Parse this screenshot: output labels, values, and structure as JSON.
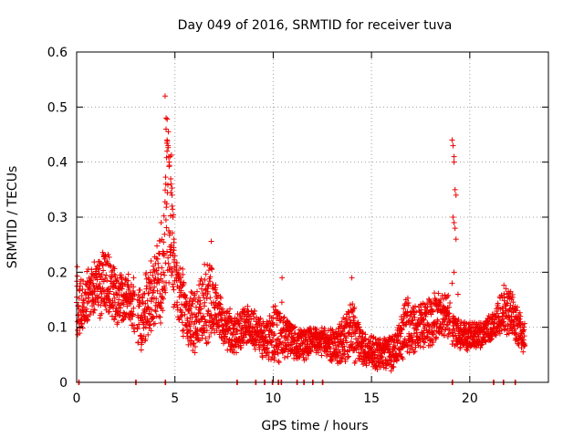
{
  "chart_data": {
    "type": "scatter",
    "title": "Day 049 of 2016, SRMTID for receiver tuva",
    "xlabel": "GPS time / hours",
    "ylabel": "SRMTID / TECUs",
    "xlim": [
      0,
      24
    ],
    "ylim": [
      0,
      0.6
    ],
    "x_ticks": [
      0,
      5,
      10,
      15,
      20
    ],
    "x_tick_labels": [
      "0",
      "5",
      "10",
      "15",
      "20"
    ],
    "y_ticks": [
      0,
      0.1,
      0.2,
      0.3,
      0.4,
      0.5,
      0.6
    ],
    "y_tick_labels": [
      "0",
      "0.1",
      "0.2",
      "0.3",
      "0.4",
      "0.5",
      "0.6"
    ],
    "grid": true,
    "marker": "plus",
    "series": [
      {
        "name": "SRMTID",
        "color": "#ee0000",
        "seed": 49,
        "envelope": [
          [
            0.0,
            0.08,
            0.21
          ],
          [
            0.3,
            0.09,
            0.19
          ],
          [
            0.6,
            0.11,
            0.21
          ],
          [
            0.9,
            0.12,
            0.22
          ],
          [
            1.2,
            0.11,
            0.23
          ],
          [
            1.4,
            0.13,
            0.26
          ],
          [
            1.7,
            0.11,
            0.24
          ],
          [
            2.0,
            0.1,
            0.2
          ],
          [
            2.3,
            0.11,
            0.2
          ],
          [
            2.6,
            0.12,
            0.2
          ],
          [
            3.0,
            0.08,
            0.17
          ],
          [
            3.3,
            0.05,
            0.18
          ],
          [
            3.6,
            0.07,
            0.22
          ],
          [
            3.9,
            0.09,
            0.23
          ],
          [
            4.2,
            0.1,
            0.26
          ],
          [
            4.4,
            0.1,
            0.29
          ],
          [
            4.6,
            0.13,
            0.5
          ],
          [
            4.8,
            0.15,
            0.44
          ],
          [
            5.0,
            0.12,
            0.22
          ],
          [
            5.3,
            0.09,
            0.23
          ],
          [
            5.6,
            0.07,
            0.16
          ],
          [
            6.0,
            0.05,
            0.17
          ],
          [
            6.4,
            0.06,
            0.21
          ],
          [
            6.8,
            0.07,
            0.24
          ],
          [
            7.2,
            0.08,
            0.17
          ],
          [
            7.6,
            0.06,
            0.14
          ],
          [
            8.0,
            0.05,
            0.13
          ],
          [
            8.4,
            0.06,
            0.13
          ],
          [
            8.8,
            0.07,
            0.15
          ],
          [
            9.2,
            0.05,
            0.13
          ],
          [
            9.6,
            0.04,
            0.11
          ],
          [
            10.0,
            0.04,
            0.14
          ],
          [
            10.4,
            0.03,
            0.15
          ],
          [
            10.8,
            0.04,
            0.12
          ],
          [
            11.2,
            0.04,
            0.1
          ],
          [
            11.6,
            0.04,
            0.1
          ],
          [
            12.0,
            0.05,
            0.1
          ],
          [
            12.4,
            0.05,
            0.1
          ],
          [
            12.8,
            0.04,
            0.1
          ],
          [
            13.2,
            0.03,
            0.1
          ],
          [
            13.6,
            0.03,
            0.12
          ],
          [
            14.0,
            0.03,
            0.16
          ],
          [
            14.4,
            0.03,
            0.1
          ],
          [
            14.8,
            0.03,
            0.09
          ],
          [
            15.2,
            0.02,
            0.09
          ],
          [
            15.6,
            0.02,
            0.08
          ],
          [
            16.0,
            0.02,
            0.09
          ],
          [
            16.4,
            0.03,
            0.11
          ],
          [
            16.8,
            0.05,
            0.16
          ],
          [
            17.2,
            0.05,
            0.15
          ],
          [
            17.6,
            0.06,
            0.15
          ],
          [
            18.0,
            0.06,
            0.16
          ],
          [
            18.4,
            0.07,
            0.17
          ],
          [
            18.9,
            0.07,
            0.16
          ],
          [
            19.3,
            0.06,
            0.12
          ],
          [
            19.7,
            0.05,
            0.11
          ],
          [
            20.1,
            0.06,
            0.11
          ],
          [
            20.5,
            0.06,
            0.11
          ],
          [
            20.9,
            0.07,
            0.12
          ],
          [
            21.3,
            0.08,
            0.13
          ],
          [
            21.7,
            0.09,
            0.18
          ],
          [
            22.1,
            0.08,
            0.17
          ],
          [
            22.5,
            0.06,
            0.13
          ],
          [
            22.8,
            0.05,
            0.11
          ]
        ],
        "gaps": [
          [
            2.95,
            3.08
          ],
          [
            5.0,
            5.05
          ],
          [
            19.0,
            19.1
          ]
        ],
        "outliers": [
          [
            0.03,
            0.21
          ],
          [
            1.9,
            0.18
          ],
          [
            2.9,
            0.19
          ],
          [
            4.3,
            0.29
          ],
          [
            4.45,
            0.23
          ],
          [
            4.5,
            0.52
          ],
          [
            4.55,
            0.48
          ],
          [
            4.55,
            0.46
          ],
          [
            4.6,
            0.44
          ],
          [
            4.6,
            0.42
          ],
          [
            4.65,
            0.43
          ],
          [
            4.7,
            0.4
          ],
          [
            4.75,
            0.41
          ],
          [
            4.8,
            0.36
          ],
          [
            4.85,
            0.34
          ],
          [
            4.85,
            0.32
          ],
          [
            4.9,
            0.3
          ],
          [
            4.95,
            0.26
          ],
          [
            4.95,
            0.24
          ],
          [
            5.0,
            0.23
          ],
          [
            6.85,
            0.256
          ],
          [
            10.45,
            0.19
          ],
          [
            14.0,
            0.19
          ],
          [
            19.1,
            0.44
          ],
          [
            19.15,
            0.43
          ],
          [
            19.2,
            0.41
          ],
          [
            19.2,
            0.4
          ],
          [
            19.25,
            0.35
          ],
          [
            19.3,
            0.34
          ],
          [
            19.15,
            0.3
          ],
          [
            19.2,
            0.29
          ],
          [
            19.25,
            0.28
          ],
          [
            19.3,
            0.26
          ],
          [
            19.2,
            0.2
          ],
          [
            19.1,
            0.18
          ],
          [
            19.4,
            0.16
          ]
        ],
        "zero_points": [
          0.1,
          3.0,
          4.5,
          8.15,
          9.1,
          9.55,
          9.95,
          10.25,
          10.4,
          11.2,
          11.55,
          12.0,
          12.5,
          19.1,
          21.2,
          21.7,
          22.3
        ]
      }
    ]
  }
}
